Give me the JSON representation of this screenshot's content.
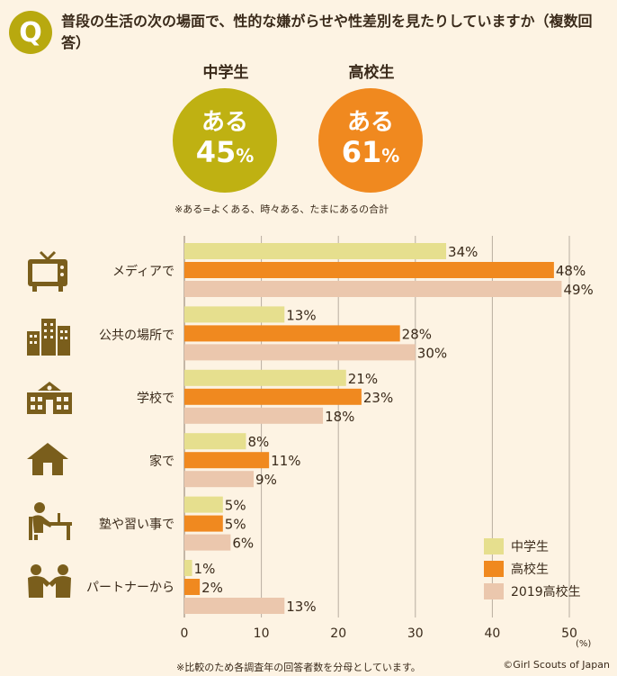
{
  "header": {
    "badge": "Q",
    "question": "普段の生活の次の場面で、性的な嫌がらせや性差別を見たりしていますか（複数回答）"
  },
  "summary": {
    "groups": [
      {
        "label": "中学生",
        "word": "ある",
        "value": "45",
        "unit": "%",
        "color": "#bfb112"
      },
      {
        "label": "高校生",
        "word": "ある",
        "value": "61",
        "unit": "%",
        "color": "#f0891f"
      }
    ],
    "note": "※ある=よくある、時々ある、たまにあるの合計"
  },
  "chart_data": {
    "type": "bar",
    "orientation": "horizontal",
    "categories": [
      "メディアで",
      "公共の場所で",
      "学校で",
      "家で",
      "塾や習い事で",
      "パートナーから"
    ],
    "series": [
      {
        "name": "中学生",
        "values": [
          34,
          13,
          21,
          8,
          5,
          1
        ],
        "color": "#e6df8e"
      },
      {
        "name": "高校生",
        "values": [
          48,
          28,
          23,
          11,
          5,
          2
        ],
        "color": "#f0891f"
      },
      {
        "name": "2019高校生",
        "values": [
          49,
          30,
          18,
          9,
          6,
          13
        ],
        "color": "#ebc7ad"
      }
    ],
    "xlim": [
      0,
      50
    ],
    "xticks": [
      0,
      10,
      20,
      30,
      40,
      50
    ],
    "xunit": "(%)",
    "value_suffix": "%",
    "legend_position": "bottom-right",
    "grid": true
  },
  "icons": [
    "tv-icon",
    "buildings-icon",
    "school-icon",
    "house-icon",
    "desk-study-icon",
    "couple-icon"
  ],
  "footer": {
    "note": "※比較のため各調査年の回答者数を分母としています。",
    "credit": "©Girl Scouts of Japan"
  }
}
